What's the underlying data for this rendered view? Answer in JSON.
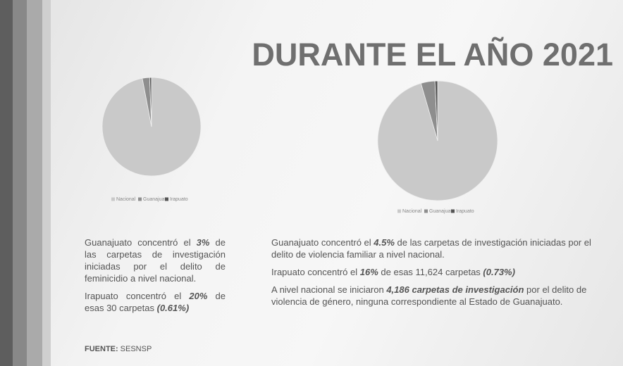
{
  "title": "DURANTE EL AÑO 2021",
  "chart_data": [
    {
      "type": "pie",
      "categories": [
        "Nacional",
        "Guanajuato",
        "Irapuato"
      ],
      "values": [
        97,
        2.39,
        0.61
      ],
      "colors": [
        "#c9c9c9",
        "#8e8e8e",
        "#555555"
      ]
    },
    {
      "type": "pie",
      "categories": [
        "Nacional",
        "Guanajuato",
        "Irapuato"
      ],
      "values": [
        95.5,
        3.77,
        0.73
      ],
      "colors": [
        "#c9c9c9",
        "#8e8e8e",
        "#555555"
      ]
    }
  ],
  "left_text": {
    "paragraphs": [
      [
        "Guanajuato concentró el ",
        "3%",
        " de las carpetas de investigación iniciadas por el delito de feminicidio a nivel nacional."
      ],
      [
        "Irapuato concentró el ",
        "20%",
        " de esas 30 carpetas ",
        "(0.61%)"
      ]
    ]
  },
  "right_text": {
    "paragraphs": [
      [
        "Guanajuato concentró el ",
        "4.5%",
        " de las carpetas de investigación iniciadas por el delito de violencia familiar a nivel nacional."
      ],
      [
        "Irapuato concentró el ",
        "16%",
        " de esas 11,624 carpetas ",
        "(0.73%)"
      ],
      [
        "A nivel nacional se iniciaron ",
        "4,186 carpetas de investigación",
        " por el delito de violencia de género, ninguna correspondiente al Estado de Guanajuato."
      ]
    ]
  },
  "source": {
    "label": "FUENTE:",
    "value": "SESNSP"
  }
}
